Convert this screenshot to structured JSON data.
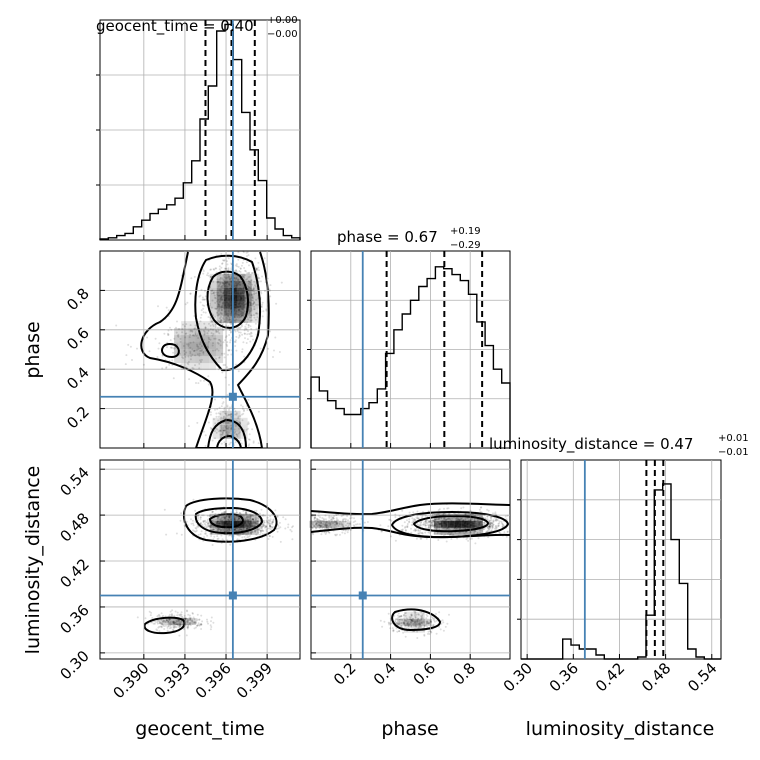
{
  "chart_data": {
    "type": "corner",
    "parameters": [
      {
        "name": "geocent_time",
        "median": "0.40",
        "err_plus": "+0.00",
        "err_minus": "−0.00",
        "truth": 0.3965,
        "range": [
          0.3868,
          0.4014
        ],
        "quantiles": [
          0.3945,
          0.3964,
          0.3981
        ],
        "ticks": [
          0.39,
          0.393,
          0.396,
          0.399
        ],
        "tick_labels": [
          "0.390",
          "0.393",
          "0.396",
          "0.399"
        ],
        "hist_heights": [
          0.005,
          0.01,
          0.02,
          0.03,
          0.06,
          0.09,
          0.12,
          0.14,
          0.16,
          0.19,
          0.26,
          0.36,
          0.55,
          0.7,
          0.95,
          0.98,
          0.82,
          0.58,
          0.41,
          0.27,
          0.1,
          0.05,
          0.02,
          0.01
        ]
      },
      {
        "name": "phase",
        "median": "0.67",
        "err_plus": "+0.19",
        "err_minus": "−0.29",
        "truth": 0.26,
        "range": [
          0.0,
          1.0
        ],
        "quantiles": [
          0.38,
          0.67,
          0.86
        ],
        "ticks": [
          0.2,
          0.4,
          0.6,
          0.8
        ],
        "tick_labels": [
          "0.2",
          "0.4",
          "0.6",
          "0.8"
        ],
        "hist_heights": [
          0.36,
          0.29,
          0.24,
          0.2,
          0.17,
          0.17,
          0.2,
          0.23,
          0.3,
          0.48,
          0.6,
          0.68,
          0.75,
          0.82,
          0.86,
          0.92,
          0.91,
          0.88,
          0.85,
          0.78,
          0.64,
          0.52,
          0.4,
          0.33
        ]
      },
      {
        "name": "luminosity_distance",
        "median": "0.47",
        "err_plus": "+0.01",
        "err_minus": "−0.01",
        "truth": 0.375,
        "range": [
          0.292,
          0.552
        ],
        "quantiles": [
          0.455,
          0.466,
          0.477
        ],
        "ticks": [
          0.3,
          0.36,
          0.42,
          0.48,
          0.54
        ],
        "tick_labels": [
          "0.30",
          "0.36",
          "0.42",
          "0.48",
          "0.54"
        ],
        "hist_heights": [
          0.0,
          0.0,
          0.0,
          0.0,
          0.0,
          0.1,
          0.07,
          0.05,
          0.05,
          0.02,
          0.0,
          0.0,
          0.0,
          0.0,
          0.01,
          0.22,
          0.85,
          0.88,
          0.6,
          0.38,
          0.05,
          0.01,
          0.0,
          0.0
        ]
      }
    ],
    "axis_labels": {
      "x": [
        "geocent_time",
        "phase",
        "luminosity_distance"
      ],
      "y": [
        "phase",
        "luminosity_distance"
      ]
    },
    "pairs": [
      {
        "x": 0,
        "y": 1,
        "blobs": [
          [
            0.3966,
            0.76,
            0.0011,
            0.1
          ],
          [
            0.3963,
            0.1,
            0.0008,
            0.07
          ],
          [
            0.394,
            0.52,
            0.002,
            0.08
          ]
        ]
      },
      {
        "x": 0,
        "y": 2,
        "blobs": [
          [
            0.3966,
            0.468,
            0.0015,
            0.009
          ],
          [
            0.3925,
            0.341,
            0.001,
            0.006
          ]
        ]
      },
      {
        "x": 1,
        "y": 2,
        "blobs": [
          [
            0.74,
            0.468,
            0.14,
            0.008
          ],
          [
            0.08,
            0.468,
            0.08,
            0.006
          ],
          [
            0.52,
            0.34,
            0.07,
            0.007
          ]
        ]
      }
    ],
    "truth_color": "#4682b4",
    "hist_color": "#000000",
    "quantile_color": "#000000",
    "grid": true
  }
}
